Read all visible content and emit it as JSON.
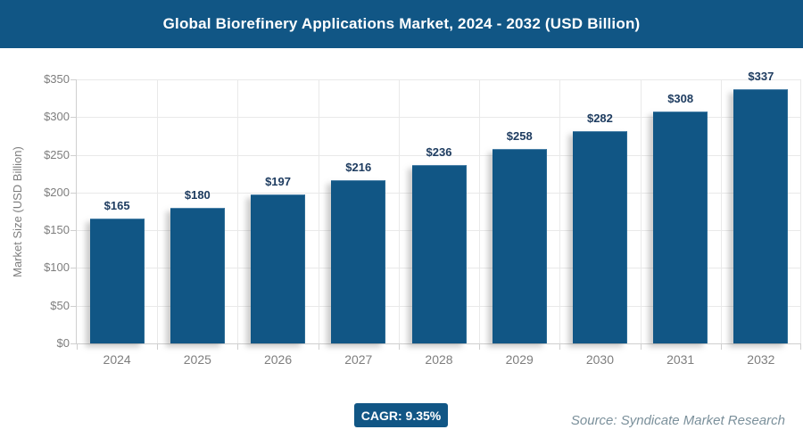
{
  "header": {
    "title": "Global Biorefinery Applications Market, 2024 - 2032 (USD Billion)"
  },
  "chart_data": {
    "type": "bar",
    "title": "Global Biorefinery Applications Market, 2024 - 2032 (USD Billion)",
    "categories": [
      "2024",
      "2025",
      "2026",
      "2027",
      "2028",
      "2029",
      "2030",
      "2031",
      "2032"
    ],
    "values": [
      165,
      180,
      197,
      216,
      236,
      258,
      282,
      308,
      337
    ],
    "value_labels": [
      "$165",
      "$180",
      "$197",
      "$216",
      "$236",
      "$258",
      "$282",
      "$308",
      "$337"
    ],
    "xlabel": "",
    "ylabel": "Market Size (USD Billion)",
    "ylim": [
      0,
      350
    ],
    "ytick_step": 50,
    "ytick_labels": [
      "$0",
      "$50",
      "$100",
      "$150",
      "$200",
      "$250",
      "$300",
      "$350"
    ],
    "grid": true,
    "legend": false
  },
  "footer": {
    "cagr_label": "CAGR: 9.35%",
    "source": "Source: Syndicate Market Research"
  },
  "colors": {
    "primary_blue": "#115685",
    "title_text": "#ffffff",
    "value_label": "#1e3c60",
    "axis_text": "#7e7e7e",
    "gridline": "#e9e9e9",
    "axis_line": "#cfcfcf",
    "source_text": "#7b909b"
  }
}
